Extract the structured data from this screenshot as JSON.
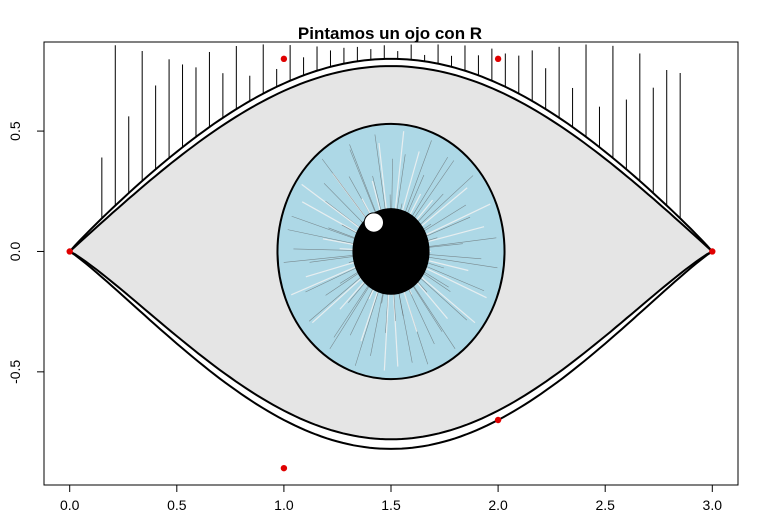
{
  "chart_data": {
    "type": "scatter",
    "title": "Pintamos un ojo con R",
    "xlabel": "",
    "ylabel": "",
    "xlim": [
      -0.12,
      3.12
    ],
    "ylim": [
      -0.97,
      0.87
    ],
    "x_ticks": [
      "0.0",
      "0.5",
      "1.0",
      "1.5",
      "2.0",
      "2.5",
      "3.0"
    ],
    "y_ticks": [
      "-0.5",
      "0.0",
      "0.5"
    ],
    "grid": false,
    "series": [
      {
        "values": [
          {
            "x": 0,
            "y": 0
          },
          {
            "x": 1,
            "y": 0.8
          },
          {
            "x": 2,
            "y": 0.8
          },
          {
            "x": 3,
            "y": 0
          },
          {
            "x": 1,
            "y": -0.9
          },
          {
            "x": 2,
            "y": -0.7
          }
        ]
      }
    ],
    "eye": {
      "upper_lid_y": 0.77,
      "lower_lid_y": -0.78,
      "outer_upper_y": 0.8,
      "outer_lower_y": -0.82,
      "iris_center": [
        1.5,
        0
      ],
      "iris_radius": 0.53,
      "pupil_radius": 0.18,
      "highlight_center": [
        1.42,
        0.12
      ],
      "highlight_radius": 0.045,
      "eyelash_top_y": 0.86
    },
    "colors": {
      "sclera": "#e5e5e5",
      "iris": "#add8e6",
      "pupil": "#000000",
      "control_points": "#e00000",
      "outline": "#000000"
    }
  }
}
